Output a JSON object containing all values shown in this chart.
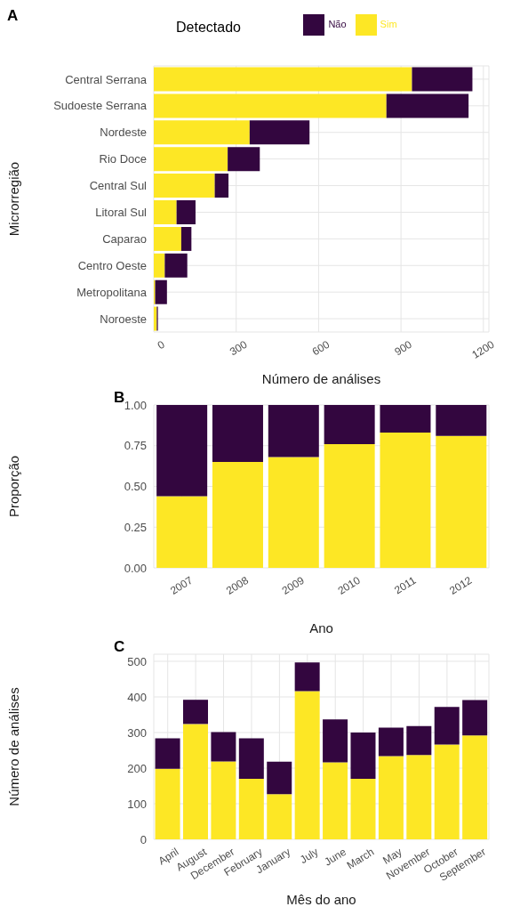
{
  "chart_data": [
    {
      "type": "bar",
      "title": "A",
      "orientation": "horizontal",
      "stacked": true,
      "xlabel": "Número de análises",
      "ylabel": "Microrregião",
      "legend_title": "Detectado",
      "legend": "top",
      "grid": true,
      "categories": [
        "Central Serrana",
        "Sudoeste Serrana",
        "Nordeste",
        "Rio Doce",
        "Central Sul",
        "Litoral Sul",
        "Caparao",
        "Centro Oeste",
        "Metropolitana",
        "Noroeste"
      ],
      "xlim": [
        0,
        1220
      ],
      "xticks": [
        0,
        300,
        600,
        900,
        1200
      ],
      "series": [
        {
          "name": "Sim",
          "color": "#fde725",
          "values": [
            940,
            847,
            349,
            269,
            222,
            83,
            100,
            40,
            5,
            11
          ]
        },
        {
          "name": "Não",
          "color": "#33063f",
          "values": [
            220,
            299,
            218,
            117,
            50,
            69,
            37,
            82,
            43,
            4
          ]
        }
      ]
    },
    {
      "type": "bar",
      "title": "B",
      "stacked": true,
      "xlabel": "Ano",
      "ylabel": "Proporção",
      "grid": true,
      "categories": [
        "2007",
        "2008",
        "2009",
        "2010",
        "2011",
        "2012"
      ],
      "ylim": [
        0,
        1
      ],
      "yticks": [
        {
          "value": 0,
          "label": "0.00"
        },
        {
          "value": 0.25,
          "label": "0.25"
        },
        {
          "value": 0.5,
          "label": "0.50"
        },
        {
          "value": 0.75,
          "label": "0.75"
        },
        {
          "value": 1,
          "label": "1.00"
        }
      ],
      "series": [
        {
          "color": "#fde725",
          "values": [
            0.44,
            0.65,
            0.68,
            0.76,
            0.83,
            0.81
          ]
        },
        {
          "color": "#33063f",
          "values": [
            0.56,
            0.35,
            0.32,
            0.24,
            0.17,
            0.19
          ]
        }
      ]
    },
    {
      "type": "bar",
      "title": "C",
      "stacked": true,
      "xlabel": "Mês do ano",
      "ylabel": "Número de análises",
      "grid": true,
      "categories": [
        "April",
        "August",
        "December",
        "February",
        "January",
        "July",
        "June",
        "March",
        "May",
        "November",
        "October",
        "September"
      ],
      "ylim": [
        0,
        520
      ],
      "yticks": [
        0,
        100,
        200,
        300,
        400,
        500
      ],
      "series": [
        {
          "color": "#fde725",
          "values": [
            198,
            324,
            219,
            170,
            127,
            416,
            216,
            170,
            234,
            237,
            266,
            292
          ]
        },
        {
          "color": "#33063f",
          "values": [
            86,
            68,
            82,
            114,
            91,
            81,
            121,
            130,
            80,
            81,
            106,
            99
          ]
        }
      ]
    }
  ]
}
